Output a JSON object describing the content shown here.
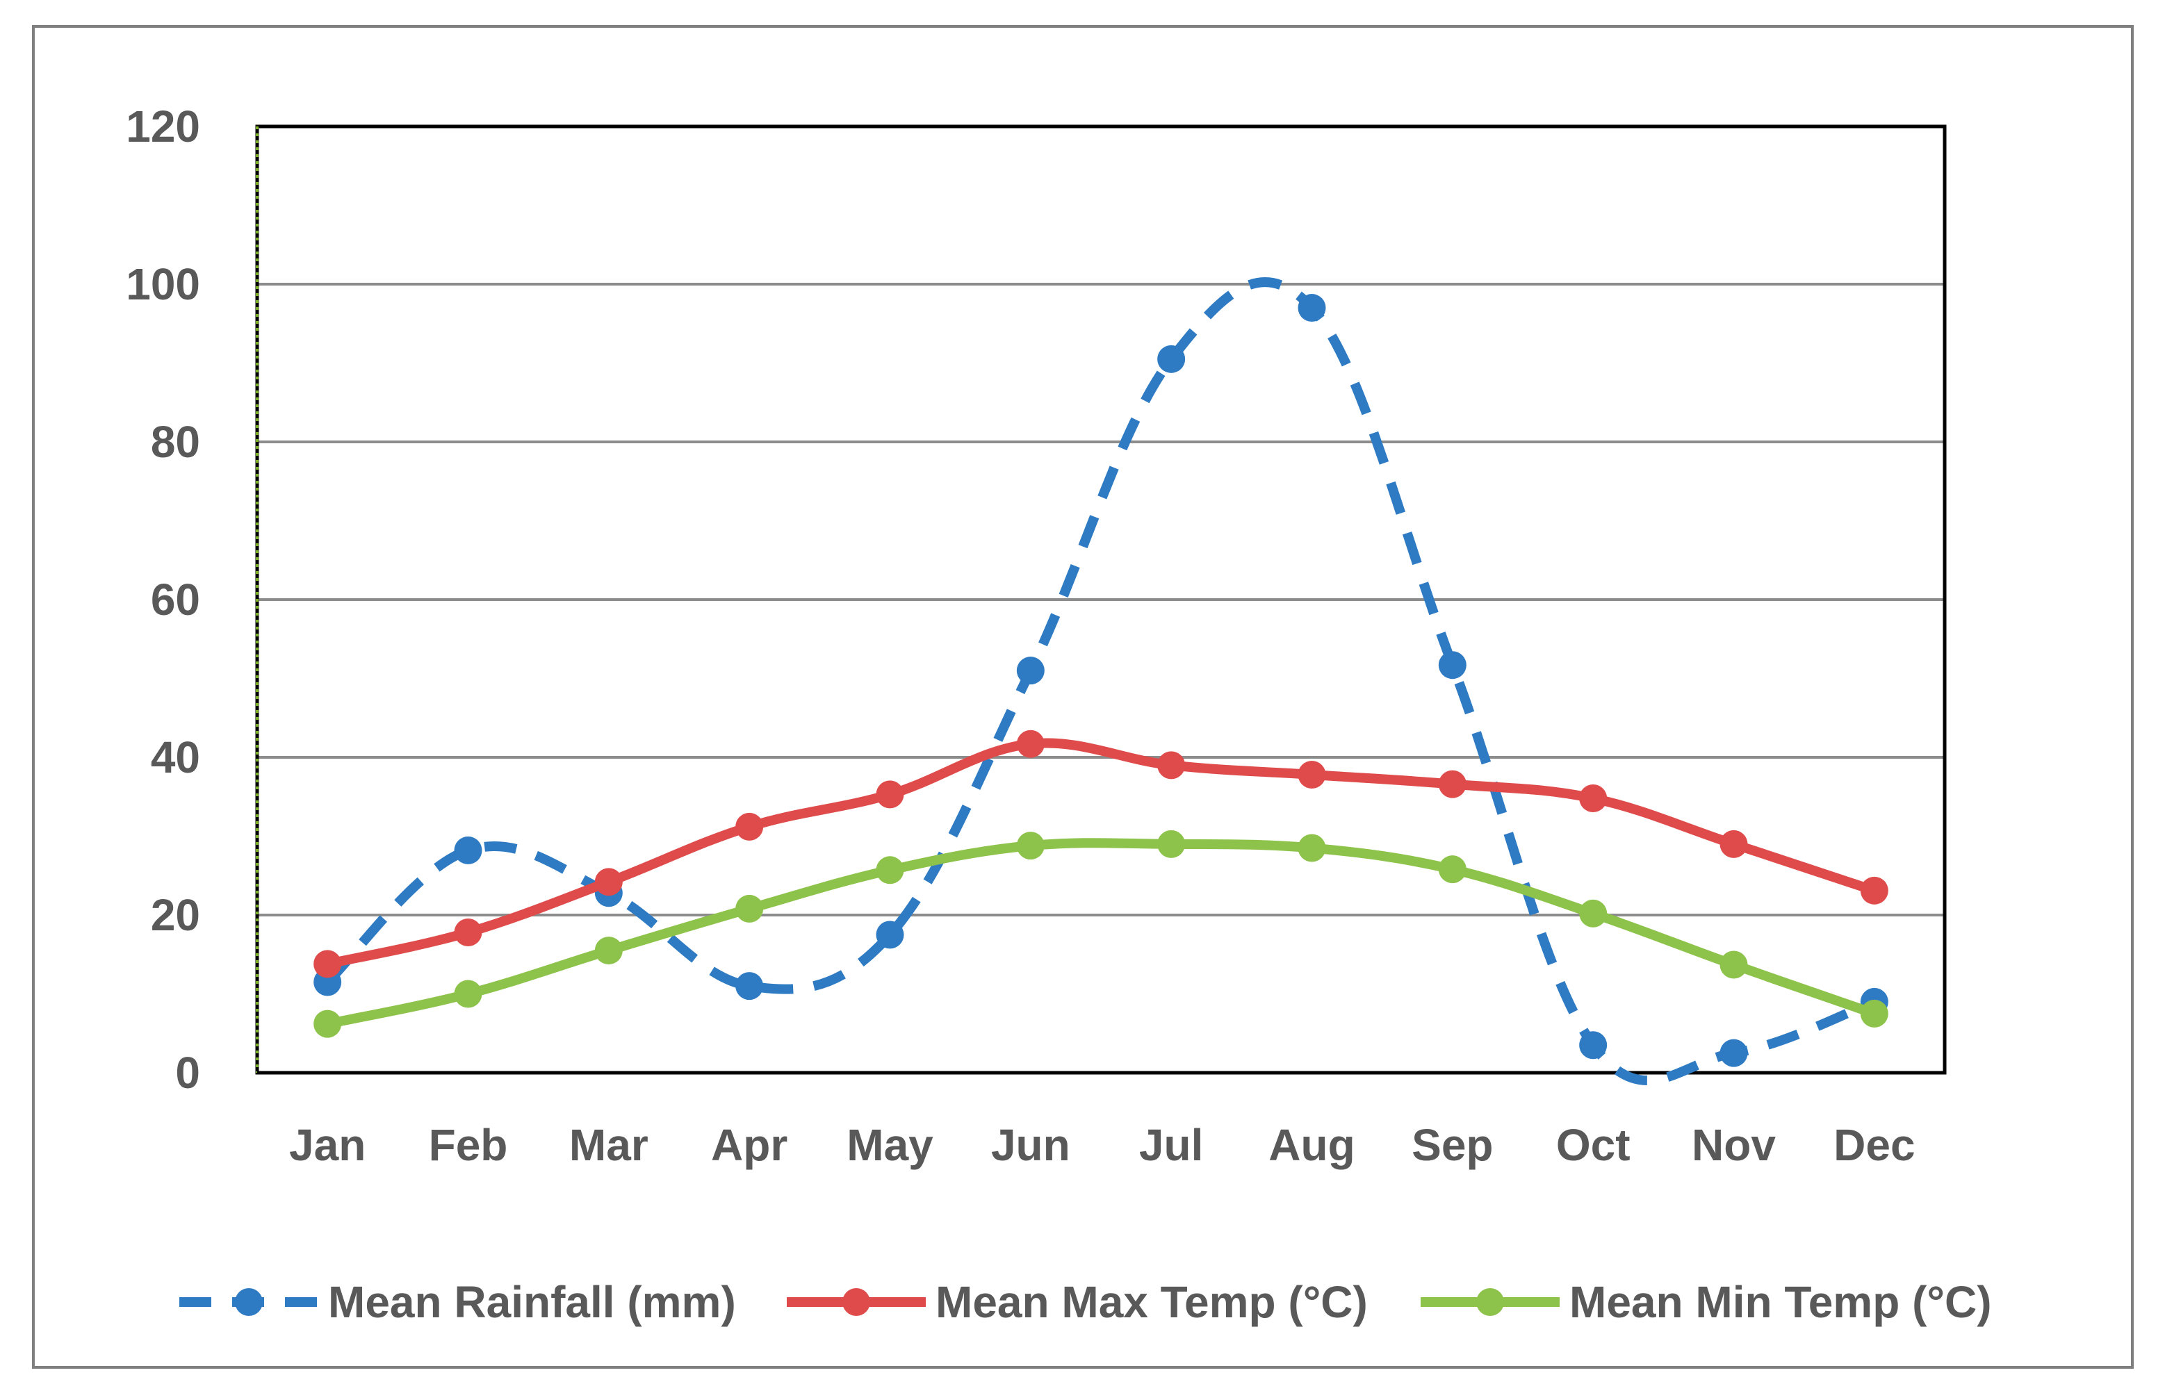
{
  "chart_data": {
    "type": "line",
    "title": "",
    "xlabel": "",
    "ylabel": "",
    "categories": [
      "Jan",
      "Feb",
      "Mar",
      "Apr",
      "May",
      "Jun",
      "Jul",
      "Aug",
      "Sep",
      "Oct",
      "Nov",
      "Dec"
    ],
    "ylim": [
      0,
      120
    ],
    "yticks": [
      "0",
      "20",
      "40",
      "60",
      "80",
      "100",
      "120"
    ],
    "grid": true,
    "legend_position": "bottom",
    "series": [
      {
        "name": "Mean Rainfall (mm)",
        "color": "#2e7bc4",
        "style": "dashed",
        "smooth": true,
        "values": [
          11.5,
          28.2,
          22.8,
          11.0,
          17.5,
          51.0,
          90.5,
          97.0,
          51.7,
          3.5,
          2.5,
          9.0
        ]
      },
      {
        "name": "Mean Max Temp (°C)",
        "color": "#df4b4b",
        "style": "solid",
        "smooth": true,
        "values": [
          13.8,
          17.8,
          24.2,
          31.2,
          35.3,
          41.7,
          39.0,
          37.8,
          36.6,
          34.8,
          29.0,
          23.1
        ]
      },
      {
        "name": "Mean Min Temp (°C)",
        "color": "#8dc34a",
        "style": "solid",
        "smooth": true,
        "values": [
          6.2,
          10.0,
          15.5,
          20.8,
          25.7,
          28.8,
          29.0,
          28.5,
          25.8,
          20.2,
          13.7,
          7.5
        ]
      }
    ]
  }
}
